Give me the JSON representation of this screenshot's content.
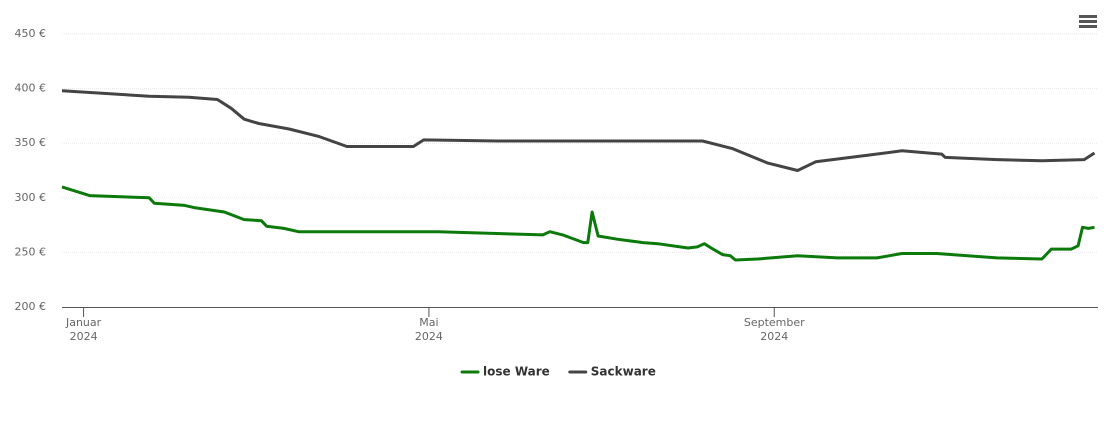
{
  "chart_data": {
    "type": "line",
    "xlim": [
      0.75,
      12.75
    ],
    "xticks": [
      {
        "value": 1,
        "label": "Januar\n2024"
      },
      {
        "value": 5,
        "label": "Mai\n2024"
      },
      {
        "value": 9,
        "label": "September\n2024"
      }
    ],
    "ylim": [
      200,
      450
    ],
    "yticks": [
      {
        "value": 200,
        "label": "200 €"
      },
      {
        "value": 250,
        "label": "250 €"
      },
      {
        "value": 300,
        "label": "300 €"
      },
      {
        "value": 350,
        "label": "350 €"
      },
      {
        "value": 400,
        "label": "400 €"
      },
      {
        "value": 450,
        "label": "450 €"
      }
    ],
    "grid": true,
    "legend": "bottom",
    "series": [
      {
        "name": "lose Ware",
        "color": "#0b7a0b",
        "x": [
          0.75,
          1.07,
          1.76,
          1.82,
          2.17,
          2.28,
          2.63,
          2.86,
          3.06,
          3.12,
          3.32,
          3.49,
          5.11,
          6.32,
          6.4,
          6.55,
          6.79,
          6.84,
          6.89,
          6.96,
          7.19,
          7.48,
          7.65,
          8.0,
          8.11,
          8.19,
          8.29,
          8.4,
          8.49,
          8.55,
          8.81,
          9.27,
          9.73,
          10.19,
          10.48,
          10.88,
          11.58,
          12.1,
          12.21,
          12.44,
          12.52,
          12.57,
          12.64,
          12.71
        ],
        "values": [
          310,
          302,
          300,
          295,
          293,
          291,
          287,
          280,
          279,
          274,
          272,
          269,
          269,
          266,
          269,
          266,
          259,
          259,
          287,
          265,
          262,
          259,
          258,
          254,
          255,
          258,
          253,
          248,
          247,
          243,
          244,
          247,
          245,
          245,
          249,
          249,
          245,
          244,
          253,
          253,
          256,
          273,
          272,
          273
        ]
      },
      {
        "name": "Sackware",
        "color": "#444444",
        "x": [
          0.75,
          1.76,
          2.22,
          2.55,
          2.71,
          2.86,
          3.03,
          3.38,
          3.73,
          4.05,
          4.82,
          4.94,
          5.8,
          8.17,
          8.52,
          8.92,
          9.27,
          9.48,
          10.08,
          10.48,
          10.94,
          10.98,
          11.58,
          12.1,
          12.59,
          12.71
        ],
        "values": [
          398,
          393,
          392,
          390,
          382,
          372,
          368,
          363,
          356,
          347,
          347,
          353,
          352,
          352,
          345,
          332,
          325,
          333,
          339,
          343,
          340,
          337,
          335,
          334,
          335,
          341
        ]
      }
    ]
  }
}
